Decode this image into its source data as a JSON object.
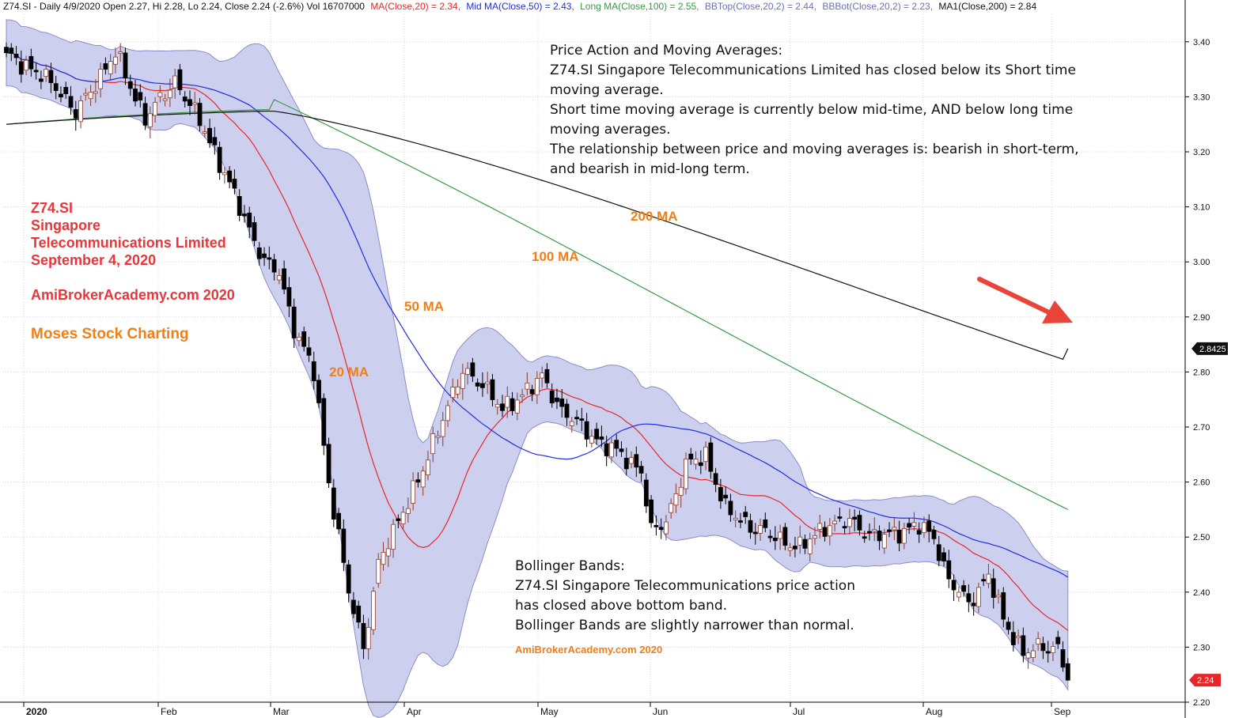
{
  "header": {
    "ticker_text": "Z74.SI - Daily 4/9/2020 Open 2.27, Hi 2.28, Lo 2.24, Close 2.24 (-2.6%) Vol 16707000",
    "ma20_text": "MA(Close,20) = 2.34,",
    "ma50_text": "Mid MA(Close,50) = 2.43,",
    "ma100_text": "Long MA(Close,100) = 2.55,",
    "bbtop_text": "BBTop(Close,20,2) = 2.44,",
    "bbbot_text": "BBBot(Close,20,2) = 2.23,",
    "ma200_text": "MA1(Close,200) = 2.84"
  },
  "annotations": {
    "price_action": [
      "Price Action and Moving Averages:",
      "Z74.SI Singapore Telecommunications Limited has closed below its Short time",
      "moving average.",
      "Short time moving average is currently below mid-time, AND below long time",
      "moving averages.",
      "The relationship between price and moving averages is: bearish in short-term,",
      "and bearish in mid-long term."
    ],
    "bollinger": [
      "Bollinger Bands:",
      "Z74.SI Singapore Telecommunications price action",
      "has closed above bottom band.",
      "Bollinger Bands are slightly narrower than normal."
    ],
    "title_lines": [
      "Z74.SI",
      "Singapore",
      "Telecommunications Limited",
      "September 4, 2020"
    ],
    "site": "AmiBrokerAcademy.com  2020",
    "moses": "Moses Stock Charting",
    "watermark": "AmiBrokerAcademy.com 2020",
    "ma_labels": {
      "ma20": "20 MA",
      "ma50": "50 MA",
      "ma100": "100 MA",
      "ma200": "200 MA"
    }
  },
  "colors": {
    "ma20": "#e8262a",
    "ma50": "#1f2ee0",
    "ma100": "#3a9a4a",
    "ma200": "#111111",
    "band_fill": "#cdcfee",
    "band_stroke": "#8a8ec8",
    "up_candle": "#ffffff",
    "up_border": "#8b3a2a",
    "down_candle": "#000000",
    "grid": "#d8d8d8",
    "arrow": "#e8443a"
  },
  "chart_data": {
    "type": "candlestick",
    "ylim": [
      2.2,
      3.45
    ],
    "y_ticks": [
      "3.40",
      "3.30",
      "3.20",
      "3.10",
      "3.00",
      "2.90",
      "2.80",
      "2.70",
      "2.60",
      "2.50",
      "2.40",
      "2.30",
      "2.20"
    ],
    "x_months": [
      "2020",
      "Feb",
      "Mar",
      "Apr",
      "May",
      "Jun",
      "Jul",
      "Aug",
      "Sep"
    ],
    "price_markers": [
      {
        "label": "2.8425",
        "value": 2.8425,
        "style": "ma200"
      },
      {
        "label": "2.24",
        "value": 2.24,
        "style": "close"
      }
    ],
    "keypoints": [
      {
        "d": 0,
        "c": 3.38
      },
      {
        "d": 10,
        "c": 3.32
      },
      {
        "d": 14,
        "c": 3.27
      },
      {
        "d": 22,
        "c": 3.38
      },
      {
        "d": 28,
        "c": 3.26
      },
      {
        "d": 34,
        "c": 3.33
      },
      {
        "d": 40,
        "c": 3.24
      },
      {
        "d": 47,
        "c": 3.1
      },
      {
        "d": 52,
        "c": 3.0
      },
      {
        "d": 55,
        "c": 2.98
      },
      {
        "d": 58,
        "c": 2.88
      },
      {
        "d": 62,
        "c": 2.8
      },
      {
        "d": 65,
        "c": 2.6
      },
      {
        "d": 69,
        "c": 2.4
      },
      {
        "d": 72,
        "c": 2.3
      },
      {
        "d": 75,
        "c": 2.45
      },
      {
        "d": 80,
        "c": 2.55
      },
      {
        "d": 84,
        "c": 2.62
      },
      {
        "d": 88,
        "c": 2.72
      },
      {
        "d": 92,
        "c": 2.8
      },
      {
        "d": 96,
        "c": 2.78
      },
      {
        "d": 100,
        "c": 2.73
      },
      {
        "d": 104,
        "c": 2.76
      },
      {
        "d": 108,
        "c": 2.79
      },
      {
        "d": 112,
        "c": 2.73
      },
      {
        "d": 116,
        "c": 2.7
      },
      {
        "d": 120,
        "c": 2.67
      },
      {
        "d": 124,
        "c": 2.65
      },
      {
        "d": 128,
        "c": 2.62
      },
      {
        "d": 130,
        "c": 2.51
      },
      {
        "d": 133,
        "c": 2.53
      },
      {
        "d": 137,
        "c": 2.63
      },
      {
        "d": 141,
        "c": 2.65
      },
      {
        "d": 145,
        "c": 2.55
      },
      {
        "d": 150,
        "c": 2.52
      },
      {
        "d": 155,
        "c": 2.5
      },
      {
        "d": 160,
        "c": 2.48
      },
      {
        "d": 165,
        "c": 2.52
      },
      {
        "d": 170,
        "c": 2.53
      },
      {
        "d": 175,
        "c": 2.5
      },
      {
        "d": 180,
        "c": 2.51
      },
      {
        "d": 184,
        "c": 2.52
      },
      {
        "d": 187,
        "c": 2.5
      },
      {
        "d": 190,
        "c": 2.42
      },
      {
        "d": 194,
        "c": 2.38
      },
      {
        "d": 198,
        "c": 2.43
      },
      {
        "d": 201,
        "c": 2.35
      },
      {
        "d": 205,
        "c": 2.29
      },
      {
        "d": 209,
        "c": 2.3
      },
      {
        "d": 212,
        "c": 2.3
      },
      {
        "d": 214,
        "c": 2.24
      }
    ]
  }
}
